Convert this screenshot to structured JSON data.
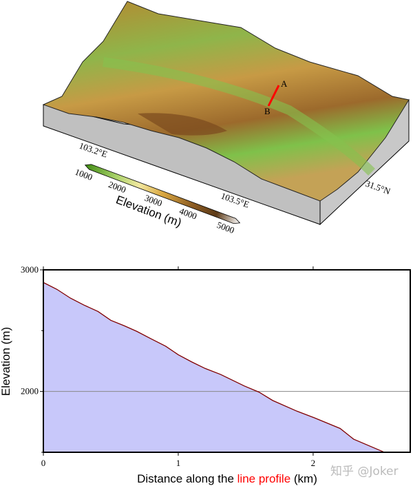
{
  "terrain_map": {
    "lon_labels": [
      "103.2°E",
      "103.5°E"
    ],
    "lat_label": "31.5°N",
    "profile_endpoints": [
      "A",
      "B"
    ],
    "profile_line_color": "#ff0000",
    "colorbar": {
      "label": "Elevation (m)",
      "ticks": [
        "1000",
        "2000",
        "3000",
        "4000",
        "5000"
      ],
      "colors": [
        "#3f8a12",
        "#a9d26a",
        "#f2e8a0",
        "#d9a741",
        "#8a5a22",
        "#5c3a17",
        "#ffffff"
      ]
    },
    "side_color": "#c0c0c0"
  },
  "chart_data": {
    "type": "area",
    "title": "",
    "xlabel_parts": [
      "Distance along the ",
      "line profile",
      " (km)"
    ],
    "xlabel_highlight_color": "#ff0000",
    "ylabel": "Elevation (m)",
    "xlim": [
      0,
      2.72
    ],
    "ylim": [
      1500,
      3000
    ],
    "xticks": [
      "0",
      "1",
      "2"
    ],
    "yticks": [
      "3000",
      "2000"
    ],
    "grid": "horizontal line at 2000",
    "fill_color": "#c8c8fa",
    "line_color": "#800000",
    "x": [
      0,
      0.1,
      0.2,
      0.3,
      0.405,
      0.5,
      0.6,
      0.693,
      0.8,
      0.907,
      1.0,
      1.1,
      1.2,
      1.314,
      1.49,
      1.6,
      1.7,
      1.88,
      2.01,
      2.2,
      2.3,
      2.52
    ],
    "y": [
      2896,
      2840,
      2768,
      2711,
      2658,
      2585,
      2540,
      2494,
      2432,
      2372,
      2302,
      2243,
      2189,
      2140,
      2045,
      1994,
      1926,
      1838,
      1783,
      1696,
      1608,
      1504
    ]
  },
  "watermark": "知乎 @Joker"
}
